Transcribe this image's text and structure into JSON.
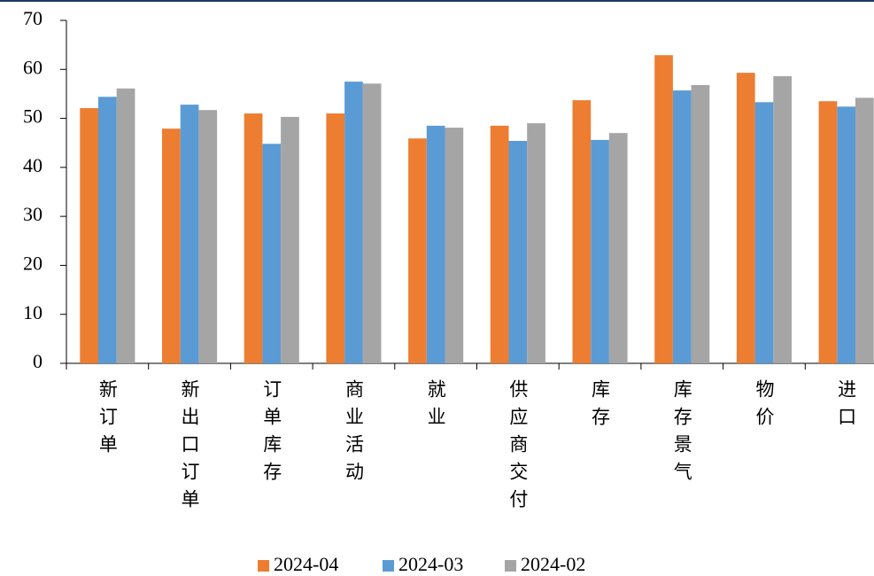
{
  "chart_data": {
    "type": "bar",
    "categories": [
      "新订单",
      "新出口订单",
      "订单库存",
      "商业活动",
      "就业",
      "供应商交付",
      "库存",
      "库存景气",
      "物价",
      "进口"
    ],
    "series": [
      {
        "name": "2024-04",
        "color": "#ed7d31",
        "values": [
          52.1,
          47.9,
          51.0,
          51.0,
          45.9,
          48.5,
          53.7,
          62.9,
          59.3,
          53.5
        ]
      },
      {
        "name": "2024-03",
        "color": "#5b9bd5",
        "values": [
          54.4,
          52.8,
          44.8,
          57.5,
          48.5,
          45.4,
          45.6,
          55.7,
          53.3,
          52.4
        ]
      },
      {
        "name": "2024-02",
        "color": "#a5a5a5",
        "values": [
          56.1,
          51.7,
          50.3,
          57.1,
          48.1,
          49.0,
          47.0,
          56.8,
          58.6,
          54.2
        ]
      }
    ],
    "ylim": [
      0,
      70
    ],
    "yticks": [
      0,
      10,
      20,
      30,
      40,
      50,
      60,
      70
    ]
  }
}
